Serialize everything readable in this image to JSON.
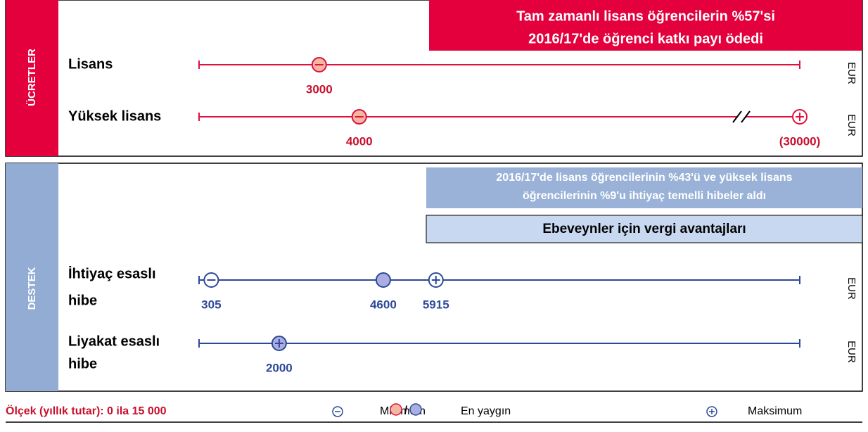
{
  "xlim": [
    0,
    15000
  ],
  "sections": [
    {
      "label": "ÜCRETLER",
      "banners": [
        [
          "Tam zamanlı lisans öğrencilerin %57'si",
          "2016/17'de öğrenci katkı payı ödedi"
        ]
      ],
      "rows": [
        {
          "label": [
            "Lisans"
          ],
          "unit": "EUR",
          "markers": [
            {
              "kind": "min",
              "common": true,
              "value": 3000
            }
          ]
        },
        {
          "label": [
            "Yüksek lisans"
          ],
          "unit": "EUR",
          "markers": [
            {
              "kind": "min",
              "common": true,
              "value": 4000
            },
            {
              "kind": "max",
              "common": false,
              "value": 30000,
              "value_label": "(30000)",
              "break": true
            }
          ]
        }
      ]
    },
    {
      "label": "DESTEK",
      "banners": [
        [
          "2016/17'de lisans öğrencilerinin %43'ü ve yüksek lisans",
          "öğrencilerinin %9'u ihtiyaç temelli hibeler aldı"
        ],
        [
          "Ebeveynler için vergi avantajları"
        ]
      ],
      "rows": [
        {
          "label": [
            "İhtiyaç esaslı",
            "hibe"
          ],
          "unit": "EUR",
          "markers": [
            {
              "kind": "min",
              "common": false,
              "value": 305
            },
            {
              "kind": "common",
              "common": true,
              "value": 4600
            },
            {
              "kind": "max",
              "common": false,
              "value": 5915
            }
          ]
        },
        {
          "label": [
            "Liyakat esaslı",
            " hibe"
          ],
          "unit": "EUR",
          "markers": [
            {
              "kind": "max",
              "common": true,
              "value": 2000
            }
          ]
        }
      ]
    }
  ],
  "legend": {
    "scale": "Ölçek (yıllık tutar): 0 ila 15 000",
    "separator": "/",
    "items": [
      {
        "kind": "min",
        "label": "Minimum"
      },
      {
        "kind": "common",
        "label": "En yaygın"
      },
      {
        "kind": "max",
        "label": "Maksimum"
      }
    ]
  }
}
